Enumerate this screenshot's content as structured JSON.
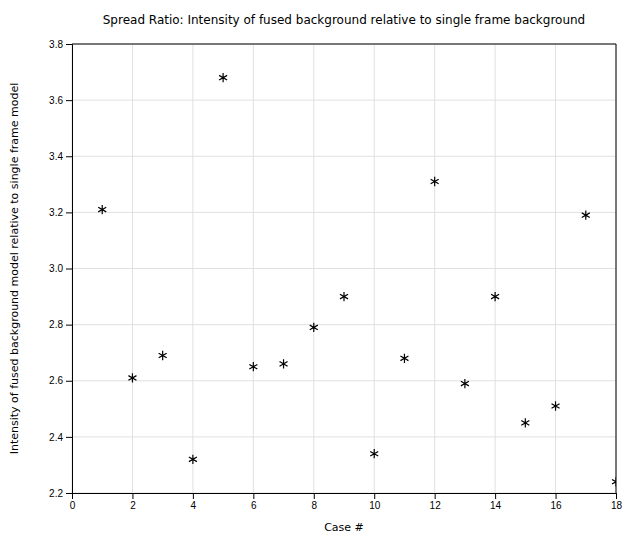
{
  "chart_data": {
    "type": "scatter",
    "title": "Spread Ratio: Intensity of fused background relative to single frame background",
    "xlabel": "Case #",
    "ylabel": "Intensity of fused background model relative to single frame model",
    "x": [
      1,
      2,
      3,
      4,
      5,
      6,
      7,
      8,
      9,
      10,
      11,
      12,
      13,
      14,
      15,
      16,
      17,
      18
    ],
    "values": [
      3.21,
      2.61,
      2.69,
      2.32,
      3.68,
      2.65,
      2.66,
      2.79,
      2.9,
      2.34,
      2.68,
      3.31,
      2.59,
      2.9,
      2.45,
      2.51,
      3.19,
      2.24
    ],
    "xlim": [
      0,
      18
    ],
    "ylim": [
      2.2,
      3.8
    ],
    "xticks": [
      0,
      2,
      4,
      6,
      8,
      10,
      12,
      14,
      16,
      18
    ],
    "yticks": [
      2.2,
      2.4,
      2.6,
      2.8,
      {
        "value": 3,
        "label": "3.0"
      },
      3.2,
      3.4,
      3.6,
      3.8
    ],
    "marker": "star",
    "color": "black",
    "grid": true
  }
}
